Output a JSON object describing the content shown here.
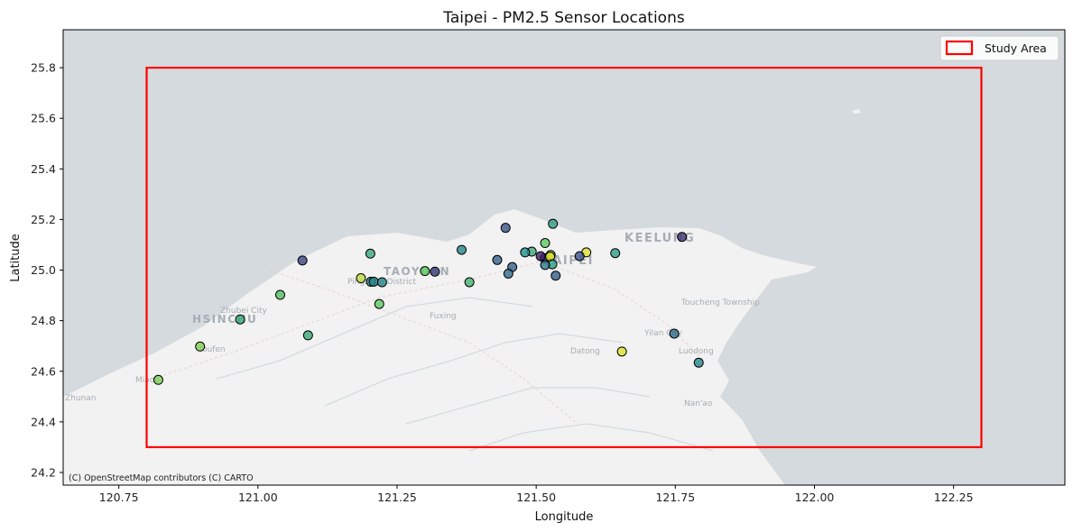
{
  "chart_data": {
    "type": "scatter",
    "title": "Taipei - PM2.5 Sensor Locations",
    "xlabel": "Longitude",
    "ylabel": "Latitude",
    "xlim": [
      120.65,
      122.45
    ],
    "ylim": [
      24.15,
      25.95
    ],
    "xticks": [
      120.75,
      121.0,
      121.25,
      121.5,
      121.75,
      122.0,
      122.25
    ],
    "xtick_labels": [
      "120.75",
      "121.00",
      "121.25",
      "121.50",
      "121.75",
      "122.00",
      "122.25"
    ],
    "yticks": [
      24.2,
      24.4,
      24.6,
      24.8,
      25.0,
      25.2,
      25.4,
      25.6,
      25.8
    ],
    "ytick_labels": [
      "24.2",
      "24.4",
      "24.6",
      "24.8",
      "25.0",
      "25.2",
      "25.4",
      "25.6",
      "25.8"
    ],
    "grid": false,
    "colormap": "viridis",
    "study_area": {
      "label": "Study Area",
      "lon_min": 120.8,
      "lon_max": 122.3,
      "lat_min": 24.3,
      "lat_max": 25.8,
      "color": "#ff0000"
    },
    "legend": {
      "position": "top-right",
      "entries": [
        "Study Area"
      ]
    },
    "attribution": "(C) OpenStreetMap contributors (C) CARTO",
    "basemap_labels": [
      "KEELUNG",
      "TAIPEI",
      "TAOYUAN",
      "HSINCHU",
      "Zhubei City",
      "Pingzhen District",
      "Fuxing",
      "Toucheng Township",
      "Yilan City",
      "Luodong",
      "Datong",
      "Toufen",
      "Nan'ao",
      "Miaoli",
      "Zhunan"
    ],
    "points": [
      {
        "lon": 121.762,
        "lat": 25.131,
        "c": 0.15
      },
      {
        "lon": 121.53,
        "lat": 25.183,
        "c": 0.55
      },
      {
        "lon": 121.445,
        "lat": 25.167,
        "c": 0.25
      },
      {
        "lon": 121.366,
        "lat": 25.08,
        "c": 0.45
      },
      {
        "lon": 121.642,
        "lat": 25.067,
        "c": 0.55
      },
      {
        "lon": 121.59,
        "lat": 25.07,
        "c": 0.95
      },
      {
        "lon": 121.578,
        "lat": 25.055,
        "c": 0.25
      },
      {
        "lon": 121.516,
        "lat": 25.107,
        "c": 0.75
      },
      {
        "lon": 121.515,
        "lat": 25.047,
        "c": 0.05
      },
      {
        "lon": 121.508,
        "lat": 25.055,
        "c": 0.1
      },
      {
        "lon": 121.526,
        "lat": 25.06,
        "c": 0.85
      },
      {
        "lon": 121.525,
        "lat": 25.053,
        "c": 0.95
      },
      {
        "lon": 121.529,
        "lat": 25.023,
        "c": 0.55
      },
      {
        "lon": 121.516,
        "lat": 25.02,
        "c": 0.4
      },
      {
        "lon": 121.535,
        "lat": 24.978,
        "c": 0.3
      },
      {
        "lon": 121.492,
        "lat": 25.073,
        "c": 0.6
      },
      {
        "lon": 121.48,
        "lat": 25.07,
        "c": 0.5
      },
      {
        "lon": 121.457,
        "lat": 25.012,
        "c": 0.3
      },
      {
        "lon": 121.43,
        "lat": 25.04,
        "c": 0.3
      },
      {
        "lon": 121.45,
        "lat": 24.986,
        "c": 0.35
      },
      {
        "lon": 121.38,
        "lat": 24.952,
        "c": 0.65
      },
      {
        "lon": 121.3,
        "lat": 24.996,
        "c": 0.75
      },
      {
        "lon": 121.318,
        "lat": 24.994,
        "c": 0.2
      },
      {
        "lon": 121.202,
        "lat": 25.065,
        "c": 0.6
      },
      {
        "lon": 121.185,
        "lat": 24.968,
        "c": 0.9
      },
      {
        "lon": 121.203,
        "lat": 24.954,
        "c": 0.5
      },
      {
        "lon": 121.208,
        "lat": 24.954,
        "c": 0.45
      },
      {
        "lon": 121.223,
        "lat": 24.952,
        "c": 0.45
      },
      {
        "lon": 121.218,
        "lat": 24.866,
        "c": 0.75
      },
      {
        "lon": 121.08,
        "lat": 25.038,
        "c": 0.2
      },
      {
        "lon": 121.04,
        "lat": 24.902,
        "c": 0.7
      },
      {
        "lon": 120.968,
        "lat": 24.805,
        "c": 0.6
      },
      {
        "lon": 121.09,
        "lat": 24.742,
        "c": 0.6
      },
      {
        "lon": 120.896,
        "lat": 24.698,
        "c": 0.8
      },
      {
        "lon": 120.821,
        "lat": 24.566,
        "c": 0.8
      },
      {
        "lon": 121.748,
        "lat": 24.749,
        "c": 0.35
      },
      {
        "lon": 121.654,
        "lat": 24.678,
        "c": 0.95
      },
      {
        "lon": 121.792,
        "lat": 24.634,
        "c": 0.45
      }
    ]
  }
}
